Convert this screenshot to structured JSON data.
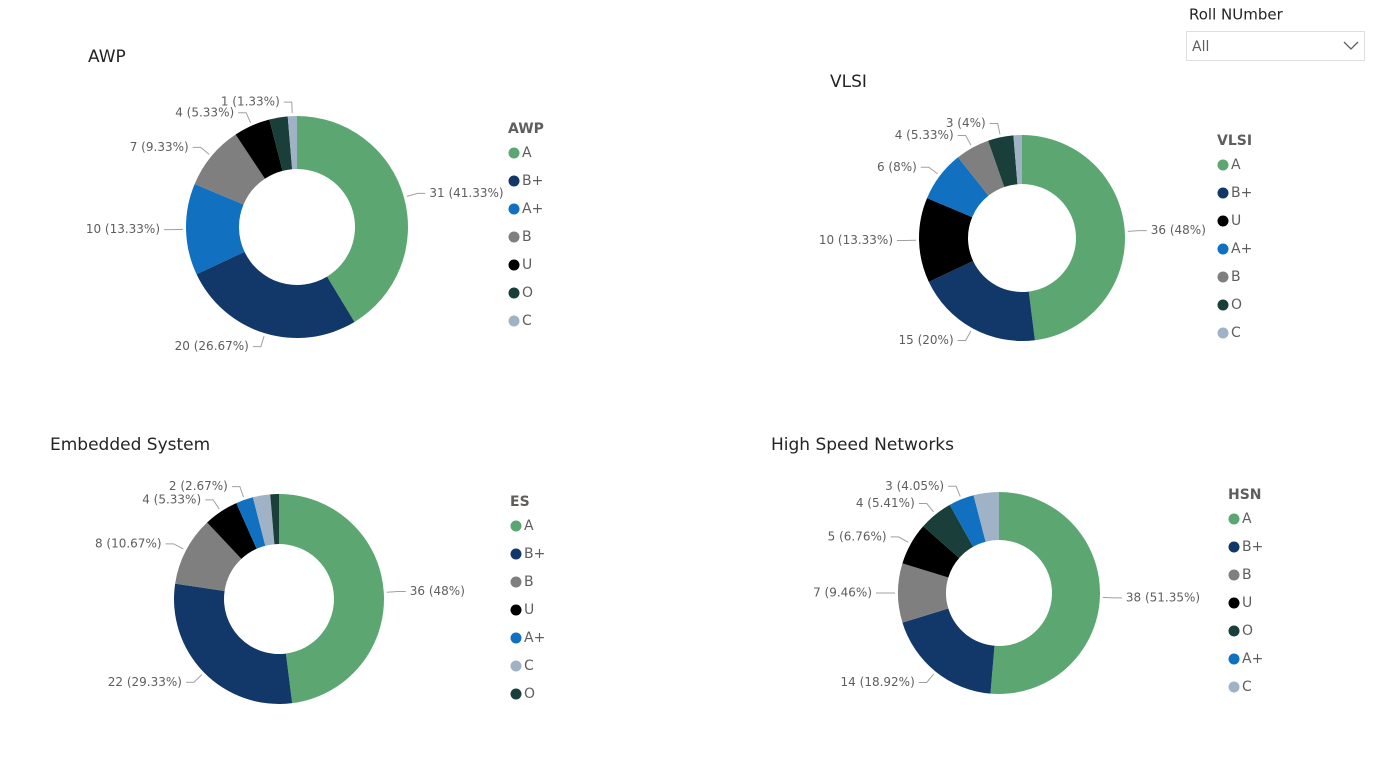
{
  "slicer": {
    "title": "Roll NUmber",
    "value": "All"
  },
  "chart_data": [
    {
      "type": "donut",
      "title": "AWP",
      "legend_title": "AWP",
      "categories": [
        "A",
        "B+",
        "A+",
        "B",
        "U",
        "O",
        "C"
      ],
      "values": [
        31,
        20,
        10,
        7,
        4,
        2,
        1
      ],
      "value_labels": [
        "31 (41.33%)",
        "20 (26.67%)",
        "10 (13.33%)",
        "7 (9.33%)",
        "4 (5.33%)",
        null,
        "1 (1.33%)"
      ],
      "colors": [
        "#5ba671",
        "#12386a",
        "#1170c0",
        "#7f7f7f",
        "#000000",
        "#1a3f3a",
        "#a0b2c6"
      ]
    },
    {
      "type": "donut",
      "title": "VLSI",
      "legend_title": "VLSI",
      "categories": [
        "A",
        "B+",
        "U",
        "A+",
        "B",
        "O",
        "C"
      ],
      "values": [
        36,
        15,
        10,
        6,
        4,
        3,
        1
      ],
      "value_labels": [
        "36 (48%)",
        "15 (20%)",
        "10 (13.33%)",
        "6 (8%)",
        "4 (5.33%)",
        "3 (4%)",
        null
      ],
      "colors": [
        "#5ba671",
        "#12386a",
        "#000000",
        "#1170c0",
        "#7f7f7f",
        "#1a3f3a",
        "#a0b2c6"
      ]
    },
    {
      "type": "donut",
      "title": "Embedded System",
      "legend_title": "ES",
      "categories": [
        "A",
        "B+",
        "B",
        "U",
        "A+",
        "C",
        "O"
      ],
      "values": [
        36,
        22,
        8,
        4,
        2,
        2,
        1
      ],
      "value_labels": [
        "36 (48%)",
        "22 (29.33%)",
        "8 (10.67%)",
        "4 (5.33%)",
        "2 (2.67%)",
        null,
        null
      ],
      "colors": [
        "#5ba671",
        "#12386a",
        "#7f7f7f",
        "#000000",
        "#1170c0",
        "#a0b2c6",
        "#1a3f3a"
      ]
    },
    {
      "type": "donut",
      "title": "High Speed Networks",
      "legend_title": "HSN",
      "categories": [
        "A",
        "B+",
        "B",
        "U",
        "O",
        "A+",
        "C"
      ],
      "values": [
        38,
        14,
        7,
        5,
        4,
        3,
        3
      ],
      "value_labels": [
        "38 (51.35%)",
        "14 (18.92%)",
        "7 (9.46%)",
        "5 (6.76%)",
        "4 (5.41%)",
        "3 (4.05%)",
        null
      ],
      "colors": [
        "#5ba671",
        "#12386a",
        "#7f7f7f",
        "#000000",
        "#1a3f3a",
        "#1170c0",
        "#a0b2c6"
      ]
    }
  ]
}
